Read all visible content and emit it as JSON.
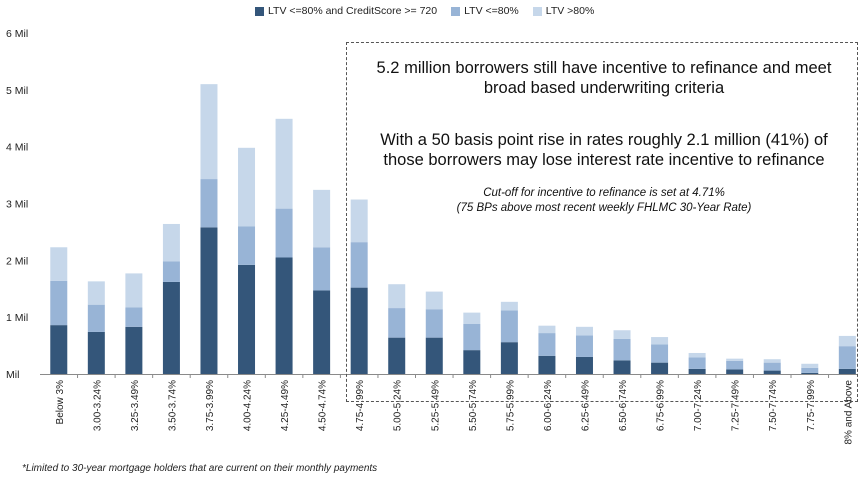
{
  "chart_data": {
    "type": "bar",
    "stacked": true,
    "categories": [
      "Below 3%",
      "3.00-3.24%",
      "3.25-3.49%",
      "3.50-3.74%",
      "3.75-3.99%",
      "4.00-4.24%",
      "4.25-4.49%",
      "4.50-4.74%",
      "4.75-4.99%",
      "5.00-5.24%",
      "5.25-5.49%",
      "5.50-5.74%",
      "5.75-5.99%",
      "6.00-6.24%",
      "6.25-6.49%",
      "6.50-6.74%",
      "6.75-6.99%",
      "7.00-7.24%",
      "7.25-7.49%",
      "7.50-7.74%",
      "7.75-7.99%",
      "8% and Above"
    ],
    "series": [
      {
        "name": "LTV <=80% and CreditScore >= 720",
        "color": "#34567a",
        "values": [
          0.86,
          0.74,
          0.83,
          1.62,
          2.58,
          1.92,
          2.05,
          1.47,
          1.52,
          0.64,
          0.64,
          0.42,
          0.56,
          0.32,
          0.3,
          0.24,
          0.2,
          0.09,
          0.08,
          0.06,
          0.02,
          0.09
        ]
      },
      {
        "name": "LTV <=80%",
        "color": "#98b4d6",
        "values": [
          0.78,
          0.48,
          0.34,
          0.36,
          0.85,
          0.68,
          0.86,
          0.76,
          0.8,
          0.52,
          0.5,
          0.46,
          0.56,
          0.4,
          0.38,
          0.38,
          0.32,
          0.2,
          0.15,
          0.14,
          0.09,
          0.4
        ]
      },
      {
        "name": "LTV >80%",
        "color": "#c6d7ea",
        "values": [
          0.59,
          0.41,
          0.6,
          0.66,
          1.67,
          1.38,
          1.58,
          1.01,
          0.75,
          0.42,
          0.31,
          0.2,
          0.15,
          0.13,
          0.15,
          0.15,
          0.13,
          0.08,
          0.04,
          0.06,
          0.07,
          0.18
        ]
      }
    ],
    "yticks": [
      "Mil",
      "1 Mil",
      "2 Mil",
      "3 Mil",
      "4 Mil",
      "5 Mil",
      "6 Mil"
    ],
    "ylim": [
      0,
      6
    ],
    "legend_position": "top",
    "grid": false
  },
  "annotation": {
    "headline1": [
      "5.2 million borrowers still have incentive to refinance and meet",
      "broad based underwriting criteria"
    ],
    "headline2": [
      "With a 50 basis point rise in rates roughly 2.1 million (41%) of",
      "those borrowers may lose interest rate incentive to refinance"
    ],
    "cutoff": [
      "Cut-off for incentive to refinance is set at 4.71%",
      "(75 BPs above most recent weekly FHLMC 30-Year Rate)"
    ]
  },
  "footnote": "*Limited to 30-year mortgage holders that are current on their monthly payments"
}
